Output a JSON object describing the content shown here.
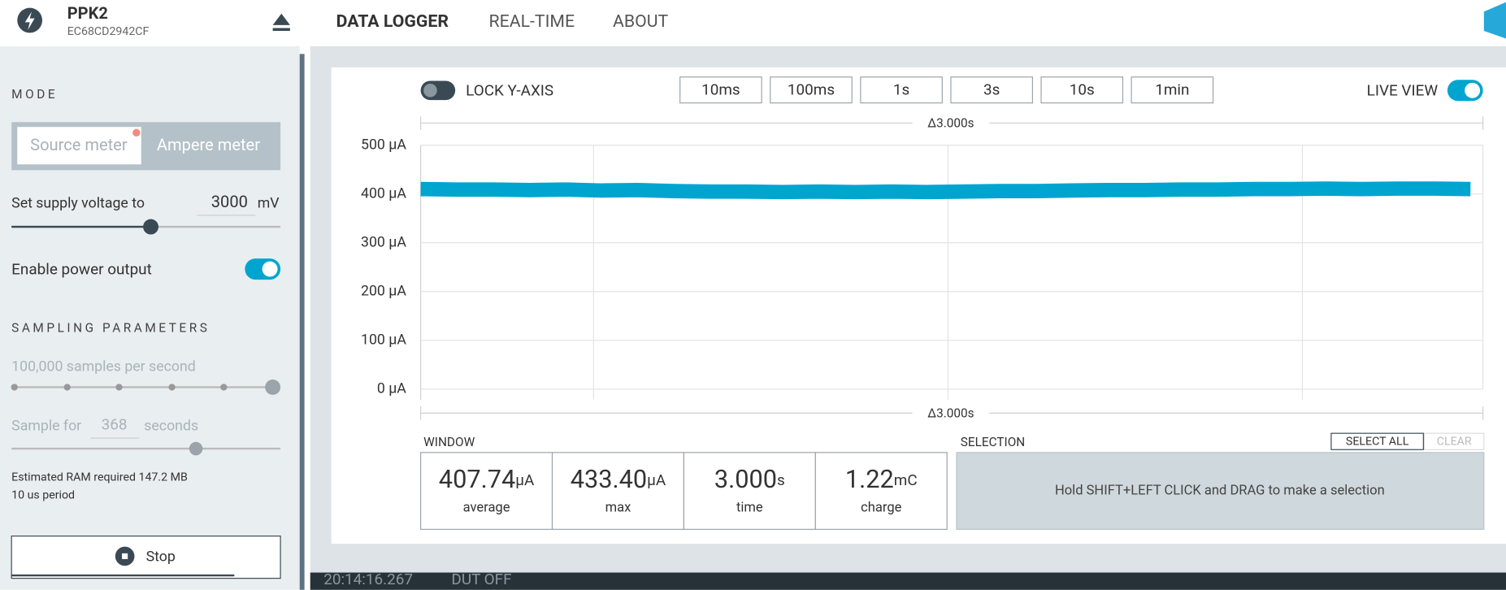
{
  "header": {
    "device": "PPK2",
    "serial": "EC68CD2942CF",
    "nav": [
      "DATA LOGGER",
      "REAL-TIME",
      "ABOUT"
    ]
  },
  "sidebar": {
    "mode_title": "MODE",
    "modes": [
      "Source meter",
      "Ampere meter"
    ],
    "voltage_label": "Set supply voltage to",
    "voltage": "3000",
    "voltage_unit": "mV",
    "power_label": "Enable power output",
    "sampling_title": "SAMPLING PARAMETERS",
    "sample_rate": "100,000 samples per second",
    "sample_for": "Sample for",
    "duration": "368",
    "duration_unit": "seconds",
    "ram": "Estimated RAM required 147.2 MB",
    "period": "10 us period",
    "stop": "Stop"
  },
  "toolbar": {
    "lock": "LOCK Y-AXIS",
    "windows": [
      "10ms",
      "100ms",
      "1s",
      "3s",
      "10s",
      "1min"
    ],
    "live": "LIVE VIEW"
  },
  "chart_data": {
    "type": "line",
    "top_label": "Δ3.000s",
    "bottom_label": "Δ3.000s",
    "ylim": [
      0,
      500
    ],
    "yticks": [
      {
        "value": 0,
        "label": "0 µA"
      },
      {
        "value": 100,
        "label": "100 µA"
      },
      {
        "value": 200,
        "label": "200 µA"
      },
      {
        "value": 300,
        "label": "300 µA"
      },
      {
        "value": 400,
        "label": "400 µA"
      },
      {
        "value": 500,
        "label": "500 µA"
      }
    ],
    "grid": true,
    "series": [
      {
        "color": "#00a5cf",
        "values": [
          410,
          409,
          409,
          408,
          409,
          407,
          408,
          406,
          405,
          405,
          404,
          405,
          404,
          405,
          404,
          405,
          406,
          406,
          407,
          408,
          408,
          409,
          409,
          410,
          410,
          411,
          410,
          411,
          411,
          410
        ]
      }
    ]
  },
  "stats": {
    "window_title": "WINDOW",
    "items": [
      {
        "value": "407.74",
        "unit": "µA",
        "label": "average"
      },
      {
        "value": "433.40",
        "unit": "µA",
        "label": "max"
      },
      {
        "value": "3.000",
        "unit": "s",
        "label": "time"
      },
      {
        "value": "1.22",
        "unit": "mC",
        "label": "charge"
      }
    ]
  },
  "selection": {
    "title": "SELECTION",
    "select_all": "SELECT ALL",
    "clear": "CLEAR",
    "hint": "Hold SHIFT+LEFT CLICK and DRAG to make a selection"
  },
  "status": {
    "time": "20:14:16.267",
    "dut": "DUT OFF"
  }
}
